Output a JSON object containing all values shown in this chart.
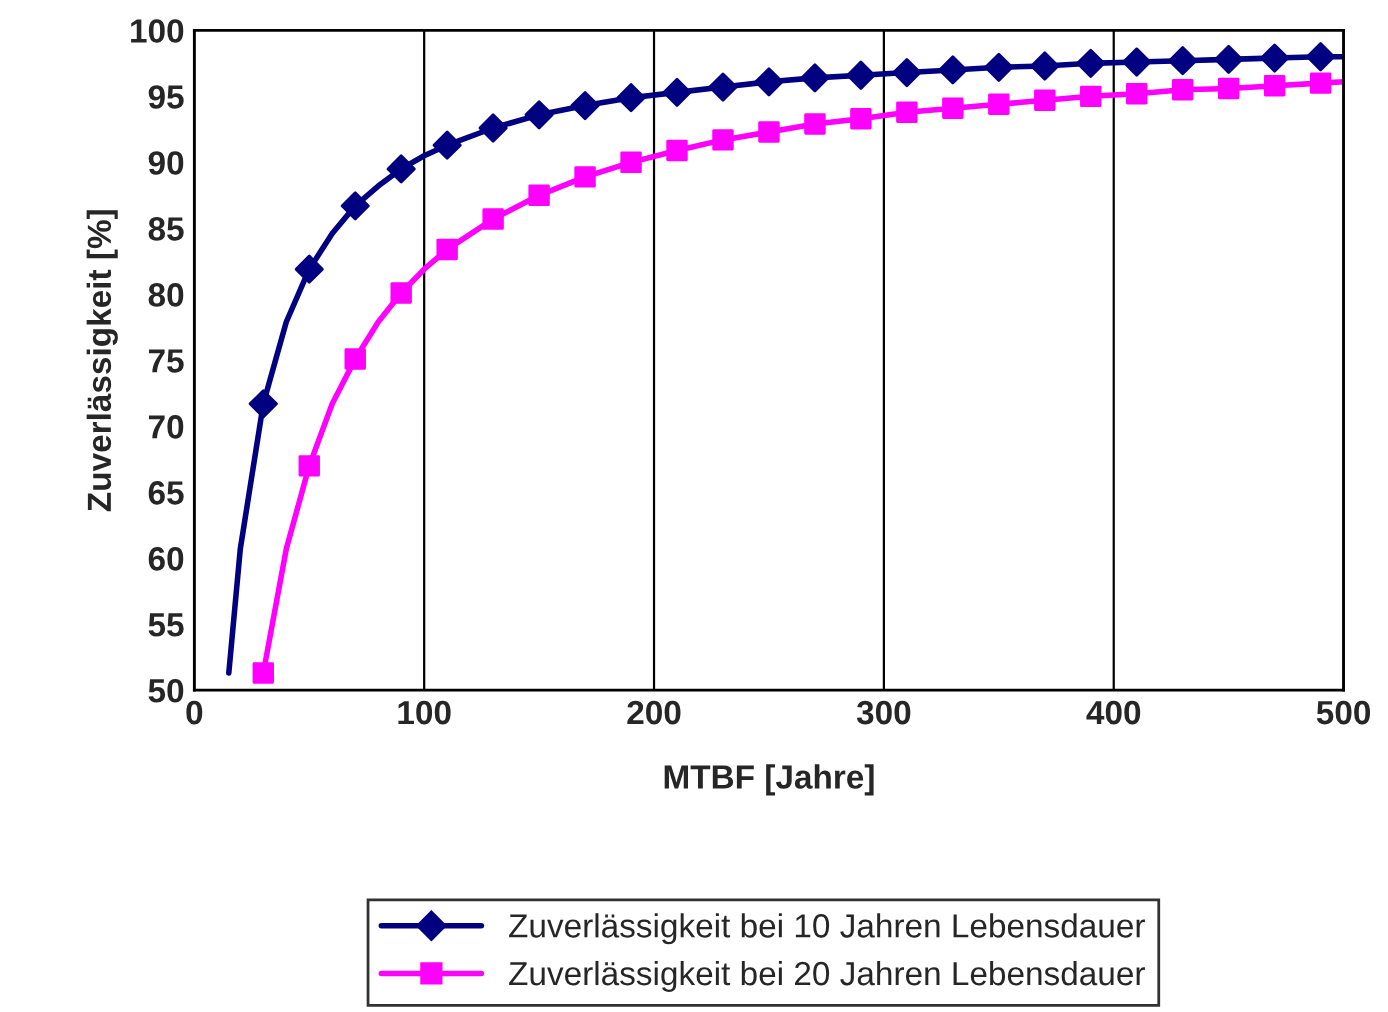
{
  "chart_data": {
    "type": "line",
    "xlabel": "MTBF [Jahre]",
    "ylabel": "Zuverlässigkeit [%]",
    "xlim": [
      0,
      500
    ],
    "xticks": [
      0,
      100,
      200,
      300,
      400,
      500
    ],
    "ylim": [
      50,
      100
    ],
    "yticks": [
      50,
      55,
      60,
      65,
      70,
      75,
      80,
      85,
      90,
      95,
      100
    ],
    "grid": "x",
    "legend": "bottom",
    "series": [
      {
        "marker": "none",
        "color": "#000080",
        "x": [
          15,
          20,
          30,
          40,
          50,
          60,
          70,
          80,
          90,
          100,
          110,
          130,
          150,
          170,
          190,
          210,
          230,
          250,
          270,
          290,
          310,
          330,
          350,
          370,
          390,
          410,
          430,
          450,
          470,
          490,
          500
        ],
        "values": [
          51.3,
          60.7,
          71.7,
          77.9,
          81.9,
          84.6,
          86.7,
          88.2,
          89.5,
          90.5,
          91.3,
          92.6,
          93.6,
          94.3,
          94.9,
          95.3,
          95.7,
          96.1,
          96.4,
          96.6,
          96.8,
          97.0,
          97.2,
          97.3,
          97.5,
          97.6,
          97.7,
          97.8,
          97.9,
          98.0,
          98.0
        ]
      },
      {
        "type": "scatter",
        "marker": "diamond",
        "name": "Zuverlässigkeit bei 10 Jahren Lebensdauer",
        "color": "#000080",
        "x": [
          30,
          50,
          70,
          90,
          110,
          130,
          150,
          170,
          190,
          210,
          230,
          250,
          270,
          290,
          310,
          330,
          350,
          370,
          390,
          410,
          430,
          450,
          470,
          490
        ],
        "values": [
          71.7,
          81.9,
          86.7,
          89.5,
          91.3,
          92.6,
          93.6,
          94.3,
          94.9,
          95.3,
          95.7,
          96.1,
          96.4,
          96.6,
          96.8,
          97.0,
          97.2,
          97.3,
          97.5,
          97.6,
          97.7,
          97.8,
          97.9,
          98.0
        ]
      },
      {
        "marker": "none",
        "color": "#ff00ff",
        "x": [
          30,
          40,
          50,
          60,
          70,
          80,
          90,
          100,
          110,
          130,
          150,
          170,
          190,
          210,
          230,
          250,
          270,
          290,
          310,
          330,
          350,
          370,
          390,
          410,
          430,
          450,
          470,
          490,
          500
        ],
        "values": [
          51.3,
          60.7,
          67.0,
          71.7,
          75.1,
          77.9,
          80.1,
          81.9,
          83.4,
          85.7,
          87.5,
          88.9,
          90.0,
          90.9,
          91.7,
          92.3,
          92.9,
          93.3,
          93.8,
          94.1,
          94.4,
          94.7,
          95.0,
          95.2,
          95.5,
          95.6,
          95.8,
          96.0,
          96.1
        ]
      },
      {
        "type": "scatter",
        "marker": "square",
        "name": "Zuverlässigkeit bei 20 Jahren Lebensdauer",
        "color": "#ff00ff",
        "x": [
          30,
          50,
          70,
          90,
          110,
          130,
          150,
          170,
          190,
          210,
          230,
          250,
          270,
          290,
          310,
          330,
          350,
          370,
          390,
          410,
          430,
          450,
          470,
          490
        ],
        "values": [
          51.3,
          67.0,
          75.1,
          80.1,
          83.4,
          85.7,
          87.5,
          88.9,
          90.0,
          90.9,
          91.7,
          92.3,
          92.9,
          93.3,
          93.8,
          94.1,
          94.4,
          94.7,
          95.0,
          95.2,
          95.5,
          95.6,
          95.8,
          96.0
        ]
      }
    ]
  }
}
